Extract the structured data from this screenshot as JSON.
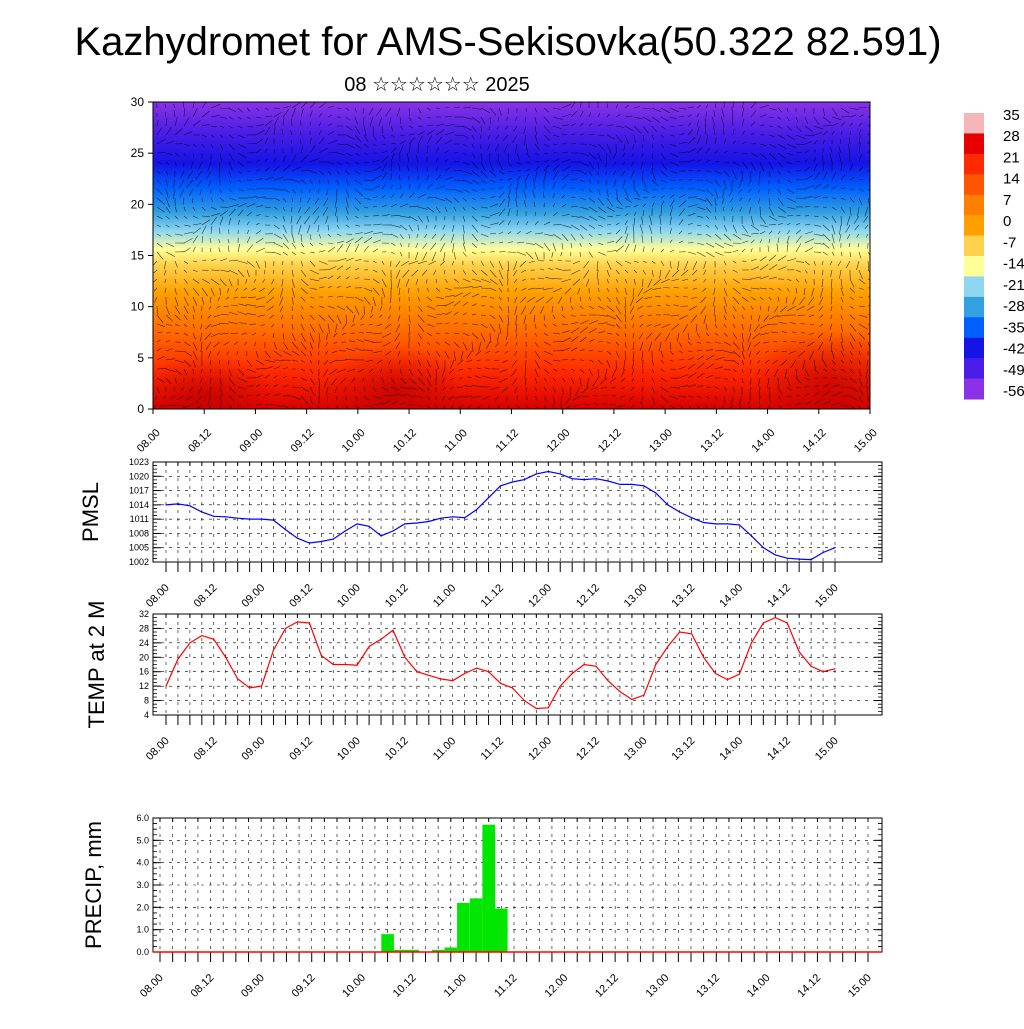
{
  "title": "Kazhydromet for AMS-Sekisovka(50.322 82.591)",
  "subtitle": "08 ☆☆☆☆☆☆ 2025",
  "x_tick_labels": [
    "08.00",
    "08.12",
    "09.00",
    "09.12",
    "10.00",
    "10.12",
    "11.00",
    "11.12",
    "12.00",
    "12.12",
    "13.00",
    "13.12",
    "14.00",
    "14.12",
    "15.00"
  ],
  "colorbar": {
    "labels": [
      "35",
      "28",
      "21",
      "14",
      "7",
      "0",
      "-7",
      "-14",
      "-21",
      "-28",
      "-35",
      "-42",
      "-49",
      "-56"
    ],
    "colors": [
      "#f4b6b6",
      "#e60000",
      "#ff2a00",
      "#ff5500",
      "#ff8000",
      "#ffa000",
      "#ffd24d",
      "#ffff99",
      "#8fd6f0",
      "#33a0e0",
      "#0060ff",
      "#1414e6",
      "#4a1ee6",
      "#8a32e6"
    ]
  },
  "chart_data": [
    {
      "type": "heatmap",
      "name": "temperature-wind-cross-section",
      "ylim": [
        0,
        30
      ],
      "y_ticks": [
        "0",
        "5",
        "10",
        "15",
        "20",
        "25",
        "30"
      ],
      "x_ticks": [
        "08.00",
        "08.12",
        "09.00",
        "09.12",
        "10.00",
        "10.12",
        "11.00",
        "11.12",
        "12.00",
        "12.12",
        "13.00",
        "13.12",
        "14.00",
        "14.12",
        "15.00"
      ],
      "vertical_profile": {
        "height": [
          0,
          5,
          10,
          15,
          20,
          25,
          30
        ],
        "temperature": [
          28,
          20,
          5,
          -12,
          -38,
          -52,
          -56
        ]
      },
      "grid": false
    },
    {
      "type": "line",
      "ylabel": "PMSL",
      "ylim": [
        1002,
        1023
      ],
      "y_ticks": [
        "1002",
        "1005",
        "1008",
        "1011",
        "1014",
        "1017",
        "1020",
        "1023"
      ],
      "x": [
        "08.00",
        "08.03",
        "08.06",
        "08.09",
        "08.12",
        "08.15",
        "08.18",
        "08.21",
        "09.00",
        "09.03",
        "09.06",
        "09.09",
        "09.12",
        "09.15",
        "09.18",
        "09.21",
        "10.00",
        "10.03",
        "10.06",
        "10.09",
        "10.12",
        "10.15",
        "10.18",
        "10.21",
        "11.00",
        "11.03",
        "11.06",
        "11.09",
        "11.12",
        "11.15",
        "11.18",
        "11.21",
        "12.00",
        "12.03",
        "12.06",
        "12.09",
        "12.12",
        "12.15",
        "12.18",
        "12.21",
        "13.00",
        "13.03",
        "13.06",
        "13.09",
        "13.12",
        "13.15",
        "13.18",
        "13.21",
        "14.00",
        "14.03",
        "14.06",
        "14.09",
        "14.12",
        "14.15",
        "14.18",
        "14.21",
        "15.00"
      ],
      "values": [
        1014,
        1014.2,
        1013.8,
        1012.5,
        1011.6,
        1011.5,
        1011.2,
        1011,
        1011,
        1010.8,
        1008.8,
        1007,
        1006,
        1006.3,
        1006.8,
        1008.5,
        1010,
        1009.5,
        1007.5,
        1008.5,
        1010,
        1010.2,
        1010.5,
        1011.2,
        1011.5,
        1011.3,
        1013,
        1015.5,
        1018,
        1018.8,
        1019.3,
        1020.5,
        1021,
        1020.5,
        1019.5,
        1019.3,
        1019.5,
        1019,
        1018.3,
        1018.3,
        1018,
        1016.5,
        1014,
        1012.5,
        1011.3,
        1010.3,
        1010,
        1010,
        1009.8,
        1007.5,
        1005,
        1003.5,
        1002.8,
        1002.6,
        1002.5,
        1004,
        1005
      ]
    },
    {
      "type": "line",
      "ylabel": "TEMP at 2 M",
      "ylim": [
        4,
        32
      ],
      "y_ticks": [
        "4",
        "8",
        "12",
        "16",
        "20",
        "24",
        "28",
        "32"
      ],
      "x": [
        "08.00",
        "08.03",
        "08.06",
        "08.09",
        "08.12",
        "08.15",
        "08.18",
        "08.21",
        "09.00",
        "09.03",
        "09.06",
        "09.09",
        "09.12",
        "09.15",
        "09.18",
        "09.21",
        "10.00",
        "10.03",
        "10.06",
        "10.09",
        "10.12",
        "10.15",
        "10.18",
        "10.21",
        "11.00",
        "11.03",
        "11.06",
        "11.09",
        "11.12",
        "11.15",
        "11.18",
        "11.21",
        "12.00",
        "12.03",
        "12.06",
        "12.09",
        "12.12",
        "12.15",
        "12.18",
        "12.21",
        "13.00",
        "13.03",
        "13.06",
        "13.09",
        "13.12",
        "13.15",
        "13.18",
        "13.21",
        "14.00",
        "14.03",
        "14.06",
        "14.09",
        "14.12",
        "14.15",
        "14.18",
        "14.21",
        "15.00"
      ],
      "values": [
        12,
        19.5,
        24,
        26,
        25,
        20,
        14,
        11.5,
        12,
        22,
        28,
        29.8,
        29.5,
        20.5,
        18,
        18,
        17.8,
        23,
        25,
        27.5,
        20,
        16,
        15,
        14,
        13.5,
        15.5,
        17,
        16,
        12.8,
        11.5,
        8,
        5.8,
        6,
        12,
        15.5,
        18,
        17.5,
        13.5,
        10.5,
        8.3,
        9.5,
        18,
        23,
        27,
        26.5,
        20,
        15.5,
        13.8,
        15.3,
        24,
        29.5,
        31,
        29.5,
        21.5,
        17.5,
        16,
        16.8
      ]
    },
    {
      "type": "bar",
      "ylabel": "PRECIP, mm",
      "ylim": [
        0,
        6
      ],
      "y_ticks": [
        "0.0",
        "1.0",
        "2.0",
        "3.0",
        "4.0",
        "5.0",
        "6.0"
      ],
      "x": [
        "08.00",
        "08.03",
        "08.06",
        "08.09",
        "08.12",
        "08.15",
        "08.18",
        "08.21",
        "09.00",
        "09.03",
        "09.06",
        "09.09",
        "09.12",
        "09.15",
        "09.18",
        "09.21",
        "10.00",
        "10.03",
        "10.06",
        "10.09",
        "10.12",
        "10.15",
        "10.18",
        "10.21",
        "11.00",
        "11.03",
        "11.06",
        "11.09",
        "11.12",
        "11.15",
        "11.18",
        "11.21",
        "12.00",
        "12.03",
        "12.06",
        "12.09",
        "12.12",
        "12.15",
        "12.18",
        "12.21",
        "13.00",
        "13.03",
        "13.06",
        "13.09",
        "13.12",
        "13.15",
        "13.18",
        "13.21",
        "14.00",
        "14.03",
        "14.06",
        "14.09",
        "14.12",
        "14.15",
        "14.18",
        "14.21",
        "15.00"
      ],
      "values": [
        0,
        0,
        0,
        0,
        0,
        0,
        0,
        0,
        0,
        0,
        0,
        0,
        0,
        0,
        0,
        0,
        0.02,
        0,
        0.8,
        0.1,
        0.1,
        0,
        0.1,
        0.2,
        2.2,
        2.4,
        5.7,
        1.95,
        0,
        0,
        0,
        0,
        0,
        0,
        0,
        0,
        0,
        0,
        0,
        0,
        0,
        0,
        0,
        0,
        0,
        0,
        0,
        0,
        0,
        0,
        0,
        0,
        0,
        0,
        0,
        0,
        0
      ],
      "bar_color": "#00e600",
      "line_color": "#ff0000"
    }
  ]
}
